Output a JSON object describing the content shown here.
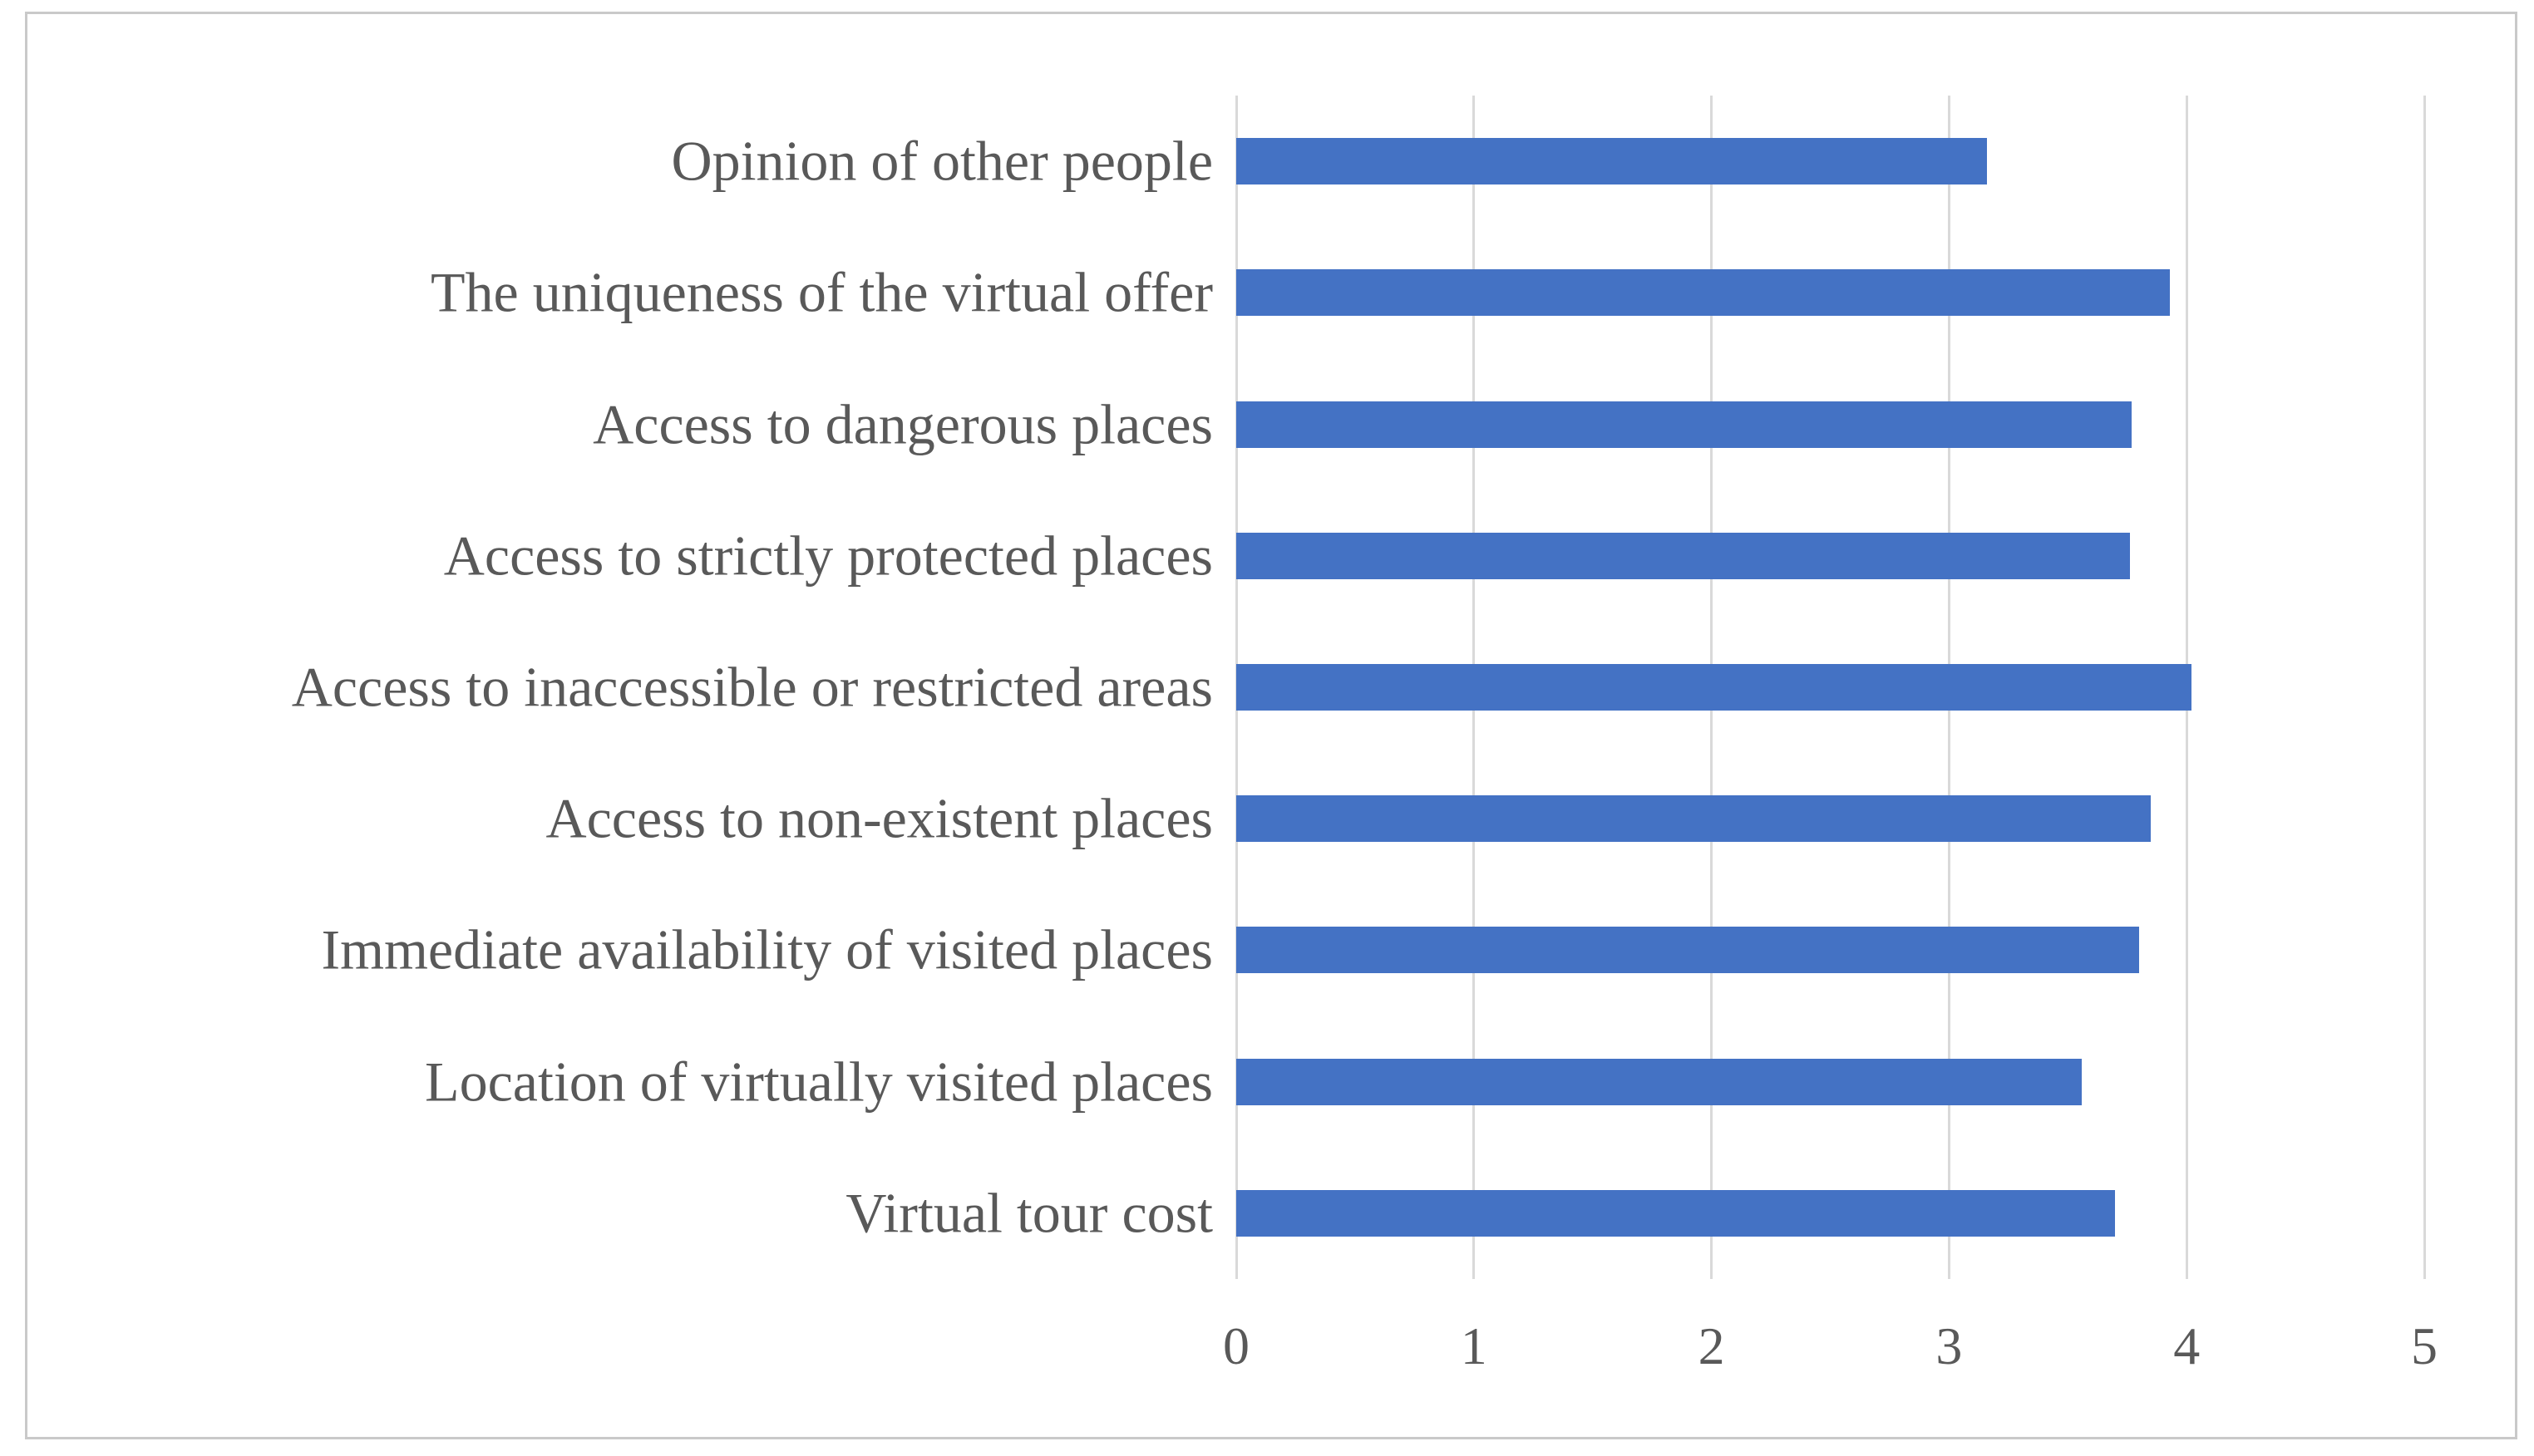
{
  "chart_data": {
    "type": "bar",
    "orientation": "horizontal",
    "title": "",
    "xlabel": "",
    "ylabel": "",
    "categories": [
      "Opinion of other people",
      "The uniqueness of the virtual offer",
      "Access to dangerous places",
      "Access to strictly protected places",
      "Access to inaccessible or restricted areas",
      "Access to non-existent places",
      "Immediate availability of visited places",
      "Location of virtually visited places",
      "Virtual tour cost"
    ],
    "values": [
      3.16,
      3.93,
      3.77,
      3.76,
      4.02,
      3.85,
      3.8,
      3.56,
      3.7
    ],
    "xlim": [
      0,
      5
    ],
    "xticks": [
      0,
      1,
      2,
      3,
      4,
      5
    ],
    "grid": "vertical-gridlines-on",
    "legend": "none",
    "bar_color": "#4472C4",
    "gridline_color": "#D9D9D9",
    "text_color": "#595959",
    "frame_border_color": "#C9C9C9"
  }
}
